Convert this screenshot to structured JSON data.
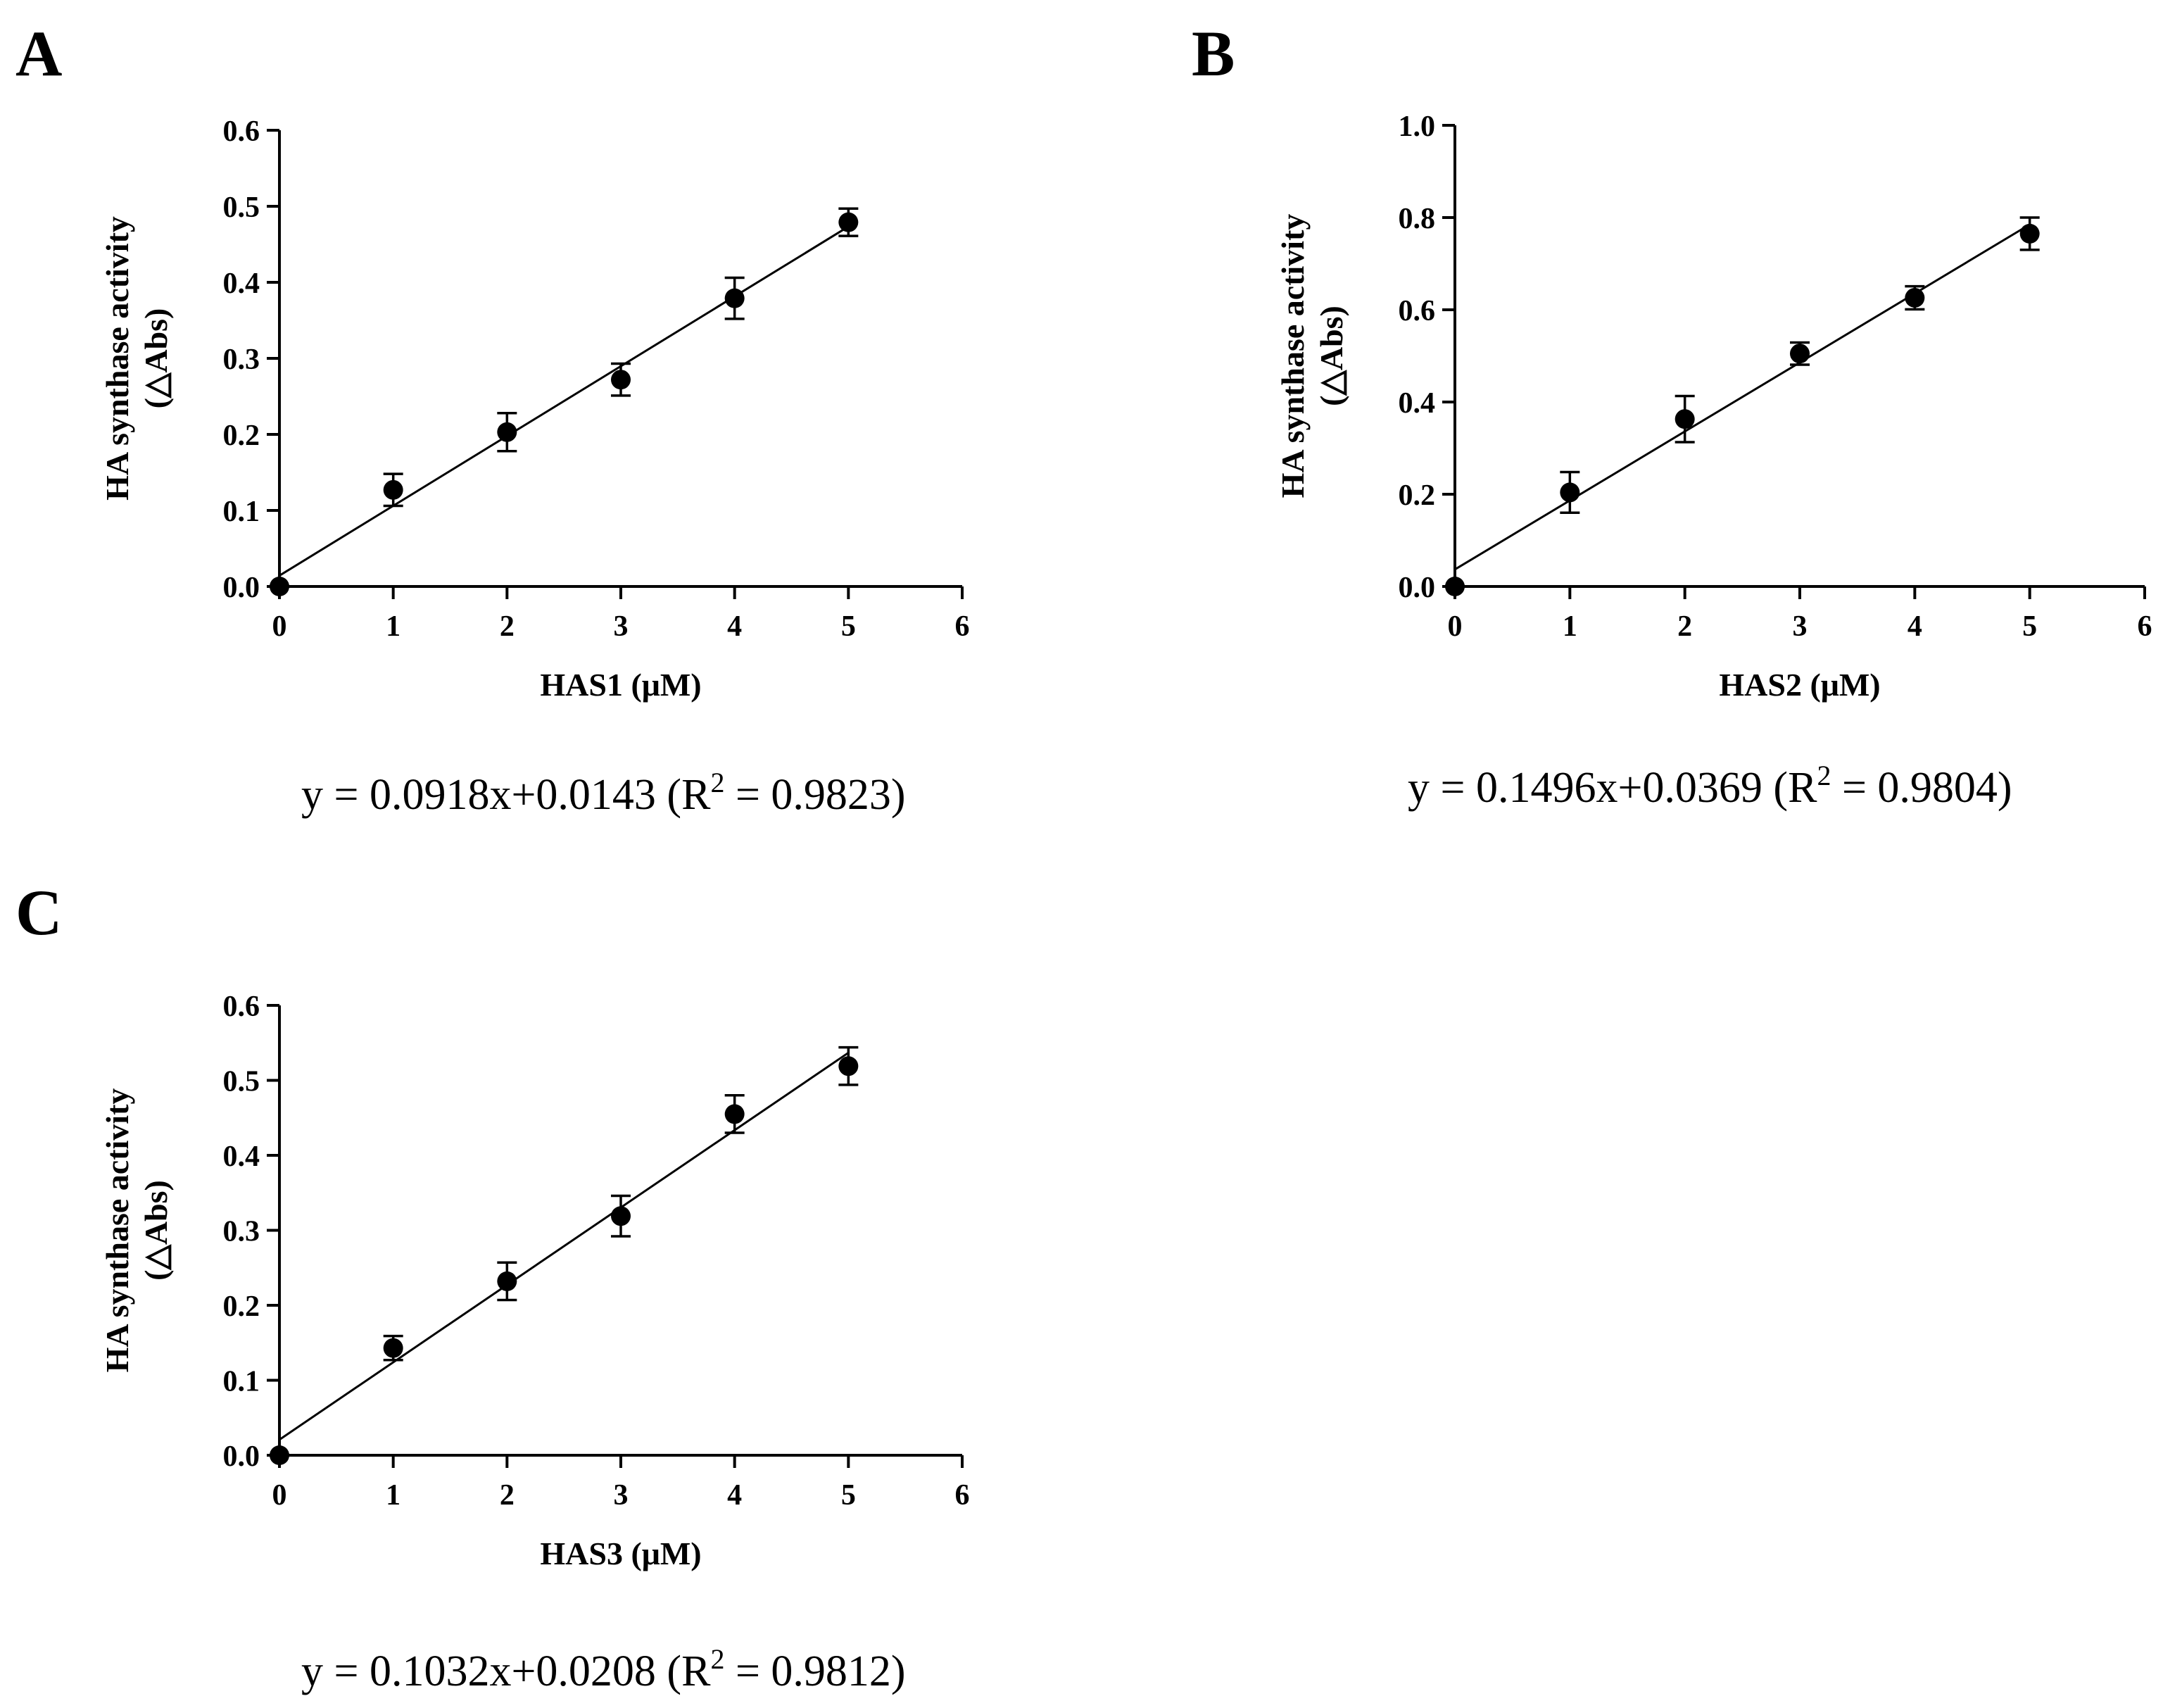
{
  "panels": [
    {
      "letter": "A",
      "equation": {
        "prefix": "y = 0.0918x+0.0143 (R",
        "sup": "2",
        "suffix": " = 0.9823)"
      },
      "chart_data": {
        "type": "scatter",
        "title": "",
        "xlabel": "HAS1 (μM)",
        "ylabel_line1": "HA synthase activity",
        "ylabel_line2": "(△Abs)",
        "xlim": [
          0,
          6
        ],
        "ylim": [
          0,
          0.6
        ],
        "xticks": [
          "0",
          "1",
          "2",
          "3",
          "4",
          "5",
          "6"
        ],
        "yticks": [
          "0.0",
          "0.1",
          "0.2",
          "0.3",
          "0.4",
          "0.5",
          "0.6"
        ],
        "x": [
          0,
          1,
          2,
          3,
          4,
          5
        ],
        "y": [
          0.0,
          0.127,
          0.203,
          0.272,
          0.379,
          0.479
        ],
        "err": [
          0,
          0.021,
          0.025,
          0.021,
          0.027,
          0.018
        ],
        "fit": {
          "slope": 0.0918,
          "intercept": 0.0143,
          "r2": 0.9823,
          "x_range": [
            0,
            5
          ]
        }
      }
    },
    {
      "letter": "B",
      "equation": {
        "prefix": "y = 0.1496x+0.0369 (R",
        "sup": "2",
        "suffix": " = 0.9804)"
      },
      "chart_data": {
        "type": "scatter",
        "title": "",
        "xlabel": "HAS2 (μM)",
        "ylabel_line1": "HA synthase activity",
        "ylabel_line2": "(△Abs)",
        "xlim": [
          0,
          6
        ],
        "ylim": [
          0,
          1.0
        ],
        "xticks": [
          "0",
          "1",
          "2",
          "3",
          "4",
          "5",
          "6"
        ],
        "yticks": [
          "0.0",
          "0.2",
          "0.4",
          "0.6",
          "0.8",
          "1.0"
        ],
        "x": [
          0,
          1,
          2,
          3,
          4,
          5
        ],
        "y": [
          0.0,
          0.204,
          0.363,
          0.505,
          0.626,
          0.765
        ],
        "err": [
          0,
          0.044,
          0.05,
          0.024,
          0.025,
          0.035
        ],
        "fit": {
          "slope": 0.1496,
          "intercept": 0.0369,
          "r2": 0.9804,
          "x_range": [
            0,
            5
          ]
        }
      }
    },
    {
      "letter": "C",
      "equation": {
        "prefix": "y = 0.1032x+0.0208 (R",
        "sup": "2",
        "suffix": " = 0.9812)"
      },
      "chart_data": {
        "type": "scatter",
        "title": "",
        "xlabel": "HAS3 (μM)",
        "ylabel_line1": "HA synthase activity",
        "ylabel_line2": "(△Abs)",
        "xlim": [
          0,
          6
        ],
        "ylim": [
          0,
          0.6
        ],
        "xticks": [
          "0",
          "1",
          "2",
          "3",
          "4",
          "5",
          "6"
        ],
        "yticks": [
          "0.0",
          "0.1",
          "0.2",
          "0.3",
          "0.4",
          "0.5",
          "0.6"
        ],
        "x": [
          0,
          1,
          2,
          3,
          4,
          5
        ],
        "y": [
          0.0,
          0.143,
          0.232,
          0.319,
          0.455,
          0.519
        ],
        "err": [
          0,
          0.016,
          0.025,
          0.027,
          0.025,
          0.025
        ],
        "fit": {
          "slope": 0.1032,
          "intercept": 0.0208,
          "r2": 0.9812,
          "x_range": [
            0,
            5
          ]
        }
      }
    }
  ]
}
